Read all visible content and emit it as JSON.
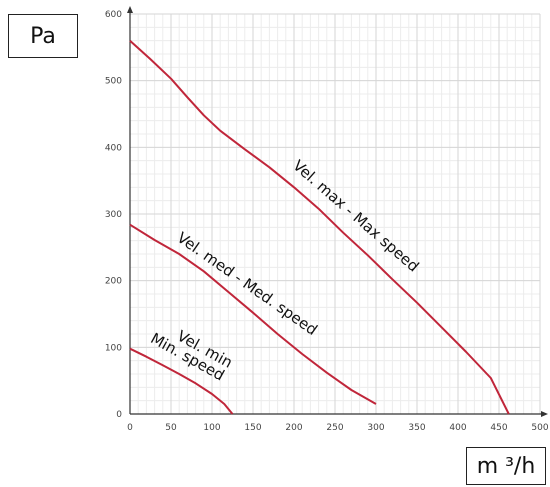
{
  "y_unit": "Pa",
  "x_unit": "m ³/h",
  "chart_data": {
    "type": "line",
    "xlabel": "m ³/h",
    "ylabel": "Pa",
    "xlim": [
      0,
      500
    ],
    "ylim": [
      0,
      600
    ],
    "x_ticks": [
      0,
      50,
      100,
      150,
      200,
      250,
      300,
      350,
      400,
      450,
      500
    ],
    "y_ticks": [
      0,
      100,
      200,
      300,
      400,
      500,
      600
    ],
    "grid": true,
    "line_color": "#c0263a",
    "series": [
      {
        "name": "Vel. max - Max speed",
        "label_lines": [
          "Vel. max - Max speed"
        ],
        "points": [
          [
            0,
            560
          ],
          [
            25,
            532
          ],
          [
            50,
            503
          ],
          [
            70,
            475
          ],
          [
            90,
            448
          ],
          [
            110,
            425
          ],
          [
            140,
            397
          ],
          [
            170,
            370
          ],
          [
            200,
            340
          ],
          [
            230,
            308
          ],
          [
            260,
            272
          ],
          [
            290,
            238
          ],
          [
            320,
            202
          ],
          [
            350,
            167
          ],
          [
            380,
            130
          ],
          [
            410,
            93
          ],
          [
            440,
            54
          ],
          [
            462,
            0
          ]
        ]
      },
      {
        "name": "Vel. med - Med. speed",
        "label_lines": [
          "Vel. med - Med. speed"
        ],
        "points": [
          [
            0,
            284
          ],
          [
            30,
            261
          ],
          [
            60,
            240
          ],
          [
            90,
            214
          ],
          [
            120,
            183
          ],
          [
            150,
            152
          ],
          [
            180,
            120
          ],
          [
            210,
            90
          ],
          [
            240,
            62
          ],
          [
            270,
            36
          ],
          [
            300,
            15
          ]
        ]
      },
      {
        "name": "Vel. min Min. speed",
        "label_lines": [
          "Vel. min",
          "Min. speed"
        ],
        "points": [
          [
            0,
            98
          ],
          [
            20,
            86
          ],
          [
            40,
            73
          ],
          [
            60,
            60
          ],
          [
            80,
            46
          ],
          [
            100,
            30
          ],
          [
            115,
            15
          ],
          [
            125,
            0
          ]
        ]
      }
    ]
  }
}
